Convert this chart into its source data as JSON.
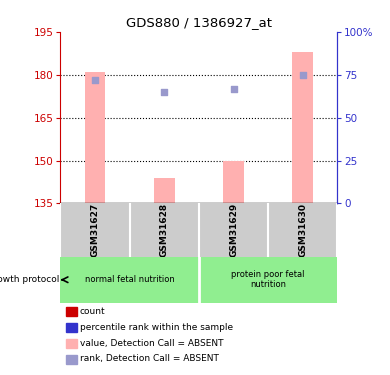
{
  "title": "GDS880 / 1386927_at",
  "samples": [
    "GSM31627",
    "GSM31628",
    "GSM31629",
    "GSM31630"
  ],
  "group1_label": "normal fetal nutrition",
  "group2_label": "protein poor fetal\nnutrition",
  "group1_indices": [
    0,
    1
  ],
  "group2_indices": [
    2,
    3
  ],
  "ylim_left": [
    135,
    195
  ],
  "ylim_right": [
    0,
    100
  ],
  "yticks_left": [
    135,
    150,
    165,
    180,
    195
  ],
  "yticks_right": [
    0,
    25,
    50,
    75,
    100
  ],
  "ytick_labels_right": [
    "0",
    "25",
    "50",
    "75",
    "100%"
  ],
  "pink_bar_values": [
    181,
    144,
    150,
    188
  ],
  "blue_square_values": [
    178,
    174,
    175,
    180
  ],
  "pink_bar_color": "#ffb0b0",
  "blue_square_color": "#9999cc",
  "axis_color_left": "#cc0000",
  "axis_color_right": "#3333cc",
  "bar_bottom": 135,
  "bg_sample_row": "#cccccc",
  "bg_group": "#90ee90",
  "legend_items": [
    {
      "color": "#cc0000",
      "label": "count"
    },
    {
      "color": "#3333cc",
      "label": "percentile rank within the sample"
    },
    {
      "color": "#ffb0b0",
      "label": "value, Detection Call = ABSENT"
    },
    {
      "color": "#9999cc",
      "label": "rank, Detection Call = ABSENT"
    }
  ],
  "growth_protocol_label": "growth protocol",
  "dotted_lines": [
    150,
    165,
    180
  ],
  "bar_width": 0.3
}
